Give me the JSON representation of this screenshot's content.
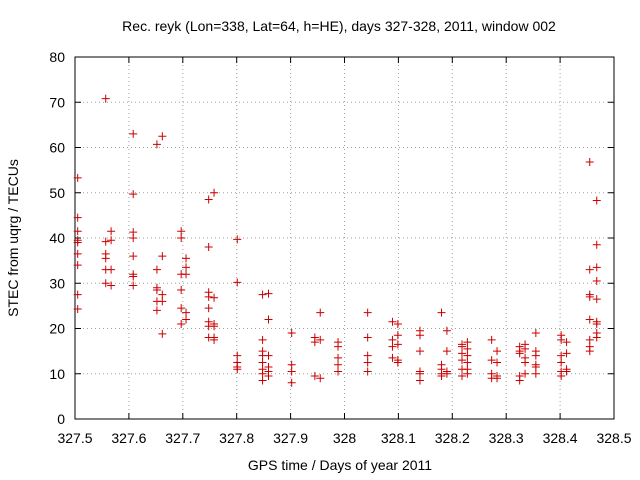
{
  "chart_data": {
    "type": "scatter",
    "title": "Rec. reyk (Lon=338, Lat=64, h=HE), days 327-328, 2011, window 002",
    "xlabel": "GPS time / Days of year 2011",
    "ylabel": "STEC from uqrg / TECUs",
    "xlim": [
      327.5,
      328.5
    ],
    "ylim": [
      0,
      80
    ],
    "xticks": [
      "327.5",
      "327.6",
      "327.7",
      "327.8",
      "327.9",
      "328",
      "328.1",
      "328.2",
      "328.3",
      "328.4",
      "328.5"
    ],
    "yticks": [
      "0",
      "10",
      "20",
      "30",
      "40",
      "50",
      "60",
      "70",
      "80"
    ],
    "grid": true,
    "marker": "+",
    "marker_color": "#cc0000",
    "points": [
      [
        327.505,
        53.3
      ],
      [
        327.505,
        44.5
      ],
      [
        327.505,
        41.5
      ],
      [
        327.505,
        39.5
      ],
      [
        327.505,
        39.0
      ],
      [
        327.505,
        36.5
      ],
      [
        327.505,
        34.0
      ],
      [
        327.505,
        27.5
      ],
      [
        327.505,
        24.3
      ],
      [
        327.557,
        70.8
      ],
      [
        327.557,
        39.2
      ],
      [
        327.557,
        36.5
      ],
      [
        327.557,
        35.5
      ],
      [
        327.557,
        33.0
      ],
      [
        327.557,
        30.0
      ],
      [
        327.567,
        41.5
      ],
      [
        327.567,
        39.5
      ],
      [
        327.567,
        33.0
      ],
      [
        327.567,
        29.5
      ],
      [
        327.608,
        63.0
      ],
      [
        327.608,
        49.7
      ],
      [
        327.608,
        41.3
      ],
      [
        327.608,
        40.0
      ],
      [
        327.608,
        36.0
      ],
      [
        327.608,
        32.0
      ],
      [
        327.608,
        31.5
      ],
      [
        327.608,
        29.5
      ],
      [
        327.652,
        60.7
      ],
      [
        327.652,
        33.0
      ],
      [
        327.652,
        29.0
      ],
      [
        327.652,
        28.5
      ],
      [
        327.652,
        26.0
      ],
      [
        327.652,
        24.0
      ],
      [
        327.662,
        62.5
      ],
      [
        327.662,
        36.0
      ],
      [
        327.662,
        27.5
      ],
      [
        327.662,
        26.0
      ],
      [
        327.662,
        18.8
      ],
      [
        327.697,
        41.5
      ],
      [
        327.697,
        40.0
      ],
      [
        327.697,
        32.0
      ],
      [
        327.697,
        28.5
      ],
      [
        327.697,
        24.5
      ],
      [
        327.697,
        21.0
      ],
      [
        327.706,
        35.5
      ],
      [
        327.706,
        33.5
      ],
      [
        327.706,
        32.0
      ],
      [
        327.706,
        23.5
      ],
      [
        327.706,
        22.0
      ],
      [
        327.748,
        48.5
      ],
      [
        327.748,
        38.0
      ],
      [
        327.748,
        28.0
      ],
      [
        327.748,
        27.0
      ],
      [
        327.748,
        24.5
      ],
      [
        327.748,
        21.5
      ],
      [
        327.748,
        20.5
      ],
      [
        327.748,
        18.0
      ],
      [
        327.758,
        50.0
      ],
      [
        327.758,
        26.8
      ],
      [
        327.758,
        21.0
      ],
      [
        327.758,
        20.5
      ],
      [
        327.758,
        18.0
      ],
      [
        327.758,
        17.5
      ],
      [
        327.801,
        39.7
      ],
      [
        327.801,
        30.2
      ],
      [
        327.801,
        14.0
      ],
      [
        327.801,
        12.5
      ],
      [
        327.801,
        11.5
      ],
      [
        327.801,
        11.0
      ],
      [
        327.848,
        27.5
      ],
      [
        327.848,
        17.5
      ],
      [
        327.848,
        15.0
      ],
      [
        327.848,
        14.0
      ],
      [
        327.848,
        12.5
      ],
      [
        327.848,
        11.0
      ],
      [
        327.848,
        10.0
      ],
      [
        327.848,
        8.5
      ],
      [
        327.859,
        27.7
      ],
      [
        327.859,
        22.0
      ],
      [
        327.859,
        14.0
      ],
      [
        327.859,
        11.5
      ],
      [
        327.859,
        10.5
      ],
      [
        327.859,
        9.5
      ],
      [
        327.902,
        19.0
      ],
      [
        327.902,
        12.0
      ],
      [
        327.902,
        10.5
      ],
      [
        327.902,
        8.0
      ],
      [
        327.945,
        18.0
      ],
      [
        327.945,
        17.0
      ],
      [
        327.945,
        9.5
      ],
      [
        327.955,
        23.5
      ],
      [
        327.955,
        17.5
      ],
      [
        327.955,
        9.0
      ],
      [
        327.988,
        17.0
      ],
      [
        327.988,
        16.0
      ],
      [
        327.988,
        13.5
      ],
      [
        327.988,
        12.0
      ],
      [
        327.988,
        10.5
      ],
      [
        328.043,
        23.5
      ],
      [
        328.043,
        18.0
      ],
      [
        328.043,
        14.0
      ],
      [
        328.043,
        12.5
      ],
      [
        328.043,
        10.5
      ],
      [
        328.089,
        21.5
      ],
      [
        328.089,
        17.5
      ],
      [
        328.089,
        16.0
      ],
      [
        328.089,
        13.5
      ],
      [
        328.099,
        21.0
      ],
      [
        328.099,
        18.5
      ],
      [
        328.099,
        16.5
      ],
      [
        328.099,
        13.0
      ],
      [
        328.099,
        12.5
      ],
      [
        328.14,
        19.5
      ],
      [
        328.14,
        18.5
      ],
      [
        328.14,
        15.0
      ],
      [
        328.14,
        10.5
      ],
      [
        328.14,
        10.0
      ],
      [
        328.14,
        8.5
      ],
      [
        328.18,
        23.5
      ],
      [
        328.18,
        12.0
      ],
      [
        328.18,
        11.0
      ],
      [
        328.18,
        10.0
      ],
      [
        328.18,
        9.5
      ],
      [
        328.19,
        19.5
      ],
      [
        328.19,
        15.0
      ],
      [
        328.19,
        10.5
      ],
      [
        328.19,
        10.0
      ],
      [
        328.218,
        16.5
      ],
      [
        328.218,
        16.0
      ],
      [
        328.218,
        14.5
      ],
      [
        328.218,
        13.0
      ],
      [
        328.218,
        11.0
      ],
      [
        328.218,
        9.5
      ],
      [
        328.228,
        17.0
      ],
      [
        328.228,
        15.5
      ],
      [
        328.228,
        14.0
      ],
      [
        328.228,
        12.5
      ],
      [
        328.228,
        11.0
      ],
      [
        328.228,
        10.0
      ],
      [
        328.273,
        17.5
      ],
      [
        328.273,
        13.0
      ],
      [
        328.273,
        10.0
      ],
      [
        328.273,
        9.0
      ],
      [
        328.283,
        15.0
      ],
      [
        328.283,
        12.5
      ],
      [
        328.283,
        9.5
      ],
      [
        328.283,
        9.0
      ],
      [
        328.325,
        16.0
      ],
      [
        328.325,
        15.0
      ],
      [
        328.325,
        14.5
      ],
      [
        328.325,
        9.5
      ],
      [
        328.325,
        8.5
      ],
      [
        328.335,
        16.5
      ],
      [
        328.335,
        15.5
      ],
      [
        328.335,
        13.5
      ],
      [
        328.335,
        12.5
      ],
      [
        328.335,
        10.0
      ],
      [
        328.355,
        19.0
      ],
      [
        328.355,
        15.0
      ],
      [
        328.355,
        14.0
      ],
      [
        328.355,
        12.0
      ],
      [
        328.355,
        11.5
      ],
      [
        328.355,
        10.0
      ],
      [
        328.402,
        18.5
      ],
      [
        328.402,
        17.5
      ],
      [
        328.402,
        14.0
      ],
      [
        328.402,
        12.5
      ],
      [
        328.402,
        10.5
      ],
      [
        328.402,
        9.5
      ],
      [
        328.412,
        17.0
      ],
      [
        328.412,
        14.5
      ],
      [
        328.412,
        11.0
      ],
      [
        328.412,
        10.5
      ],
      [
        328.455,
        56.8
      ],
      [
        328.455,
        33.0
      ],
      [
        328.455,
        27.5
      ],
      [
        328.455,
        27.0
      ],
      [
        328.455,
        22.0
      ],
      [
        328.455,
        17.5
      ],
      [
        328.455,
        16.0
      ],
      [
        328.455,
        15.0
      ],
      [
        328.468,
        48.3
      ],
      [
        328.468,
        38.5
      ],
      [
        328.468,
        33.5
      ],
      [
        328.468,
        30.5
      ],
      [
        328.468,
        26.5
      ],
      [
        328.468,
        21.5
      ],
      [
        328.468,
        21.0
      ],
      [
        328.468,
        19.0
      ],
      [
        328.468,
        18.0
      ]
    ]
  }
}
